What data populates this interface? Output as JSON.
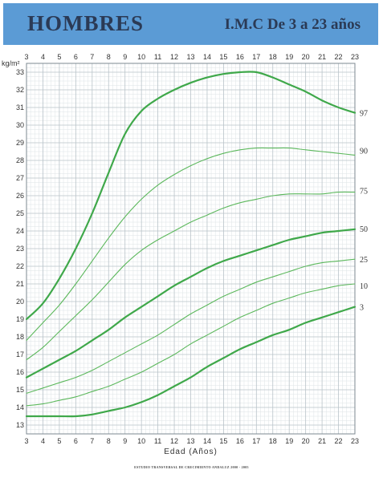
{
  "header": {
    "title": "HOMBRES",
    "subtitle": "I.M.C De 3 a 23 años"
  },
  "footer_text": "ESTUDIO TRANSVERSAL DE CRECIMIENTO ANDALUZ 2000 - 2005",
  "colors": {
    "header_bg": "#5b9bd5",
    "grid_major": "#b9c3c9",
    "grid_minor": "#dde3e6",
    "curve": "#5cb85c",
    "curve_dark": "#3fa84a"
  },
  "chart_data": {
    "type": "line",
    "title": "",
    "xlabel": "Edad (Años)",
    "ylabel": "kg/m²",
    "xlim": [
      3,
      23
    ],
    "ylim": [
      12.5,
      33.5
    ],
    "x_ticks": [
      3,
      4,
      5,
      6,
      7,
      8,
      9,
      10,
      11,
      12,
      13,
      14,
      15,
      16,
      17,
      18,
      19,
      20,
      21,
      22,
      23
    ],
    "y_ticks": [
      13,
      14,
      15,
      16,
      17,
      18,
      19,
      20,
      21,
      22,
      23,
      24,
      25,
      26,
      27,
      28,
      29,
      30,
      31,
      32,
      33
    ],
    "grid": true,
    "series": [
      {
        "name": "97",
        "bold": true,
        "x": [
          3,
          4,
          5,
          6,
          7,
          8,
          9,
          10,
          11,
          12,
          13,
          14,
          15,
          16,
          17,
          18,
          19,
          20,
          21,
          22,
          23
        ],
        "values": [
          19.0,
          19.9,
          21.3,
          23.0,
          25.0,
          27.3,
          29.5,
          30.8,
          31.5,
          32.0,
          32.4,
          32.7,
          32.9,
          33.0,
          33.0,
          32.7,
          32.3,
          31.9,
          31.4,
          31.0,
          30.7
        ]
      },
      {
        "name": "90",
        "bold": false,
        "x": [
          3,
          4,
          5,
          6,
          7,
          8,
          9,
          10,
          11,
          12,
          13,
          14,
          15,
          16,
          17,
          18,
          19,
          20,
          21,
          22,
          23
        ],
        "values": [
          17.8,
          18.8,
          19.8,
          21.0,
          22.3,
          23.6,
          24.8,
          25.8,
          26.6,
          27.2,
          27.7,
          28.1,
          28.4,
          28.6,
          28.7,
          28.7,
          28.7,
          28.6,
          28.5,
          28.4,
          28.3
        ]
      },
      {
        "name": "75",
        "bold": false,
        "x": [
          3,
          4,
          5,
          6,
          7,
          8,
          9,
          10,
          11,
          12,
          13,
          14,
          15,
          16,
          17,
          18,
          19,
          20,
          21,
          22,
          23
        ],
        "values": [
          16.7,
          17.4,
          18.3,
          19.2,
          20.1,
          21.1,
          22.1,
          22.9,
          23.5,
          24.0,
          24.5,
          24.9,
          25.3,
          25.6,
          25.8,
          26.0,
          26.1,
          26.1,
          26.1,
          26.2,
          26.2
        ]
      },
      {
        "name": "50",
        "bold": true,
        "x": [
          3,
          4,
          5,
          6,
          7,
          8,
          9,
          10,
          11,
          12,
          13,
          14,
          15,
          16,
          17,
          18,
          19,
          20,
          21,
          22,
          23
        ],
        "values": [
          15.7,
          16.2,
          16.7,
          17.2,
          17.8,
          18.4,
          19.1,
          19.7,
          20.3,
          20.9,
          21.4,
          21.9,
          22.3,
          22.6,
          22.9,
          23.2,
          23.5,
          23.7,
          23.9,
          24.0,
          24.1
        ]
      },
      {
        "name": "25",
        "bold": false,
        "x": [
          3,
          4,
          5,
          6,
          7,
          8,
          9,
          10,
          11,
          12,
          13,
          14,
          15,
          16,
          17,
          18,
          19,
          20,
          21,
          22,
          23
        ],
        "values": [
          14.8,
          15.1,
          15.4,
          15.7,
          16.1,
          16.6,
          17.1,
          17.6,
          18.1,
          18.7,
          19.3,
          19.8,
          20.3,
          20.7,
          21.1,
          21.4,
          21.7,
          22.0,
          22.2,
          22.3,
          22.4
        ]
      },
      {
        "name": "10",
        "bold": false,
        "x": [
          3,
          4,
          5,
          6,
          7,
          8,
          9,
          10,
          11,
          12,
          13,
          14,
          15,
          16,
          17,
          18,
          19,
          20,
          21,
          22,
          23
        ],
        "values": [
          14.1,
          14.2,
          14.4,
          14.6,
          14.9,
          15.2,
          15.6,
          16.0,
          16.5,
          17.0,
          17.6,
          18.1,
          18.6,
          19.1,
          19.5,
          19.9,
          20.2,
          20.5,
          20.7,
          20.9,
          21.0
        ]
      },
      {
        "name": "3",
        "bold": true,
        "x": [
          3,
          4,
          5,
          6,
          7,
          8,
          9,
          10,
          11,
          12,
          13,
          14,
          15,
          16,
          17,
          18,
          19,
          20,
          21,
          22,
          23
        ],
        "values": [
          13.5,
          13.5,
          13.5,
          13.5,
          13.6,
          13.8,
          14.0,
          14.3,
          14.7,
          15.2,
          15.7,
          16.3,
          16.8,
          17.3,
          17.7,
          18.1,
          18.4,
          18.8,
          19.1,
          19.4,
          19.7
        ]
      }
    ]
  }
}
